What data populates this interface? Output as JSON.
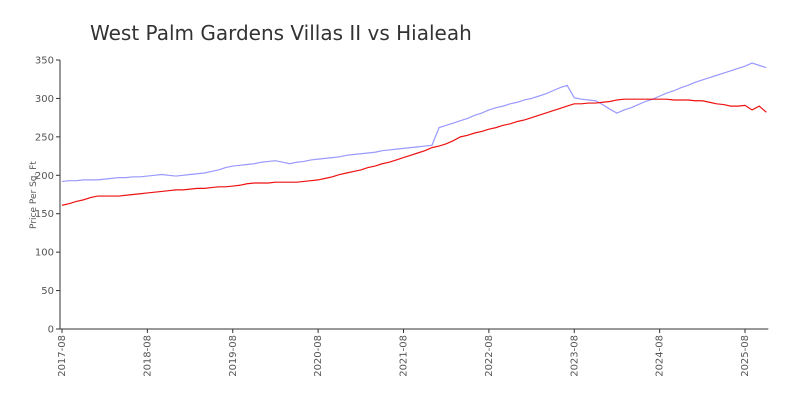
{
  "chart_data": {
    "type": "line",
    "title": "West Palm Gardens Villas II vs Hialeah",
    "ylabel": "Price Per Sq. Ft",
    "x": [
      "2017-08",
      "2017-09",
      "2017-10",
      "2017-11",
      "2017-12",
      "2018-01",
      "2018-02",
      "2018-03",
      "2018-04",
      "2018-05",
      "2018-06",
      "2018-07",
      "2018-08",
      "2018-09",
      "2018-10",
      "2018-11",
      "2018-12",
      "2019-01",
      "2019-02",
      "2019-03",
      "2019-04",
      "2019-05",
      "2019-06",
      "2019-07",
      "2019-08",
      "2019-09",
      "2019-10",
      "2019-11",
      "2019-12",
      "2020-01",
      "2020-02",
      "2020-03",
      "2020-04",
      "2020-05",
      "2020-06",
      "2020-07",
      "2020-08",
      "2020-09",
      "2020-10",
      "2020-11",
      "2020-12",
      "2021-01",
      "2021-02",
      "2021-03",
      "2021-04",
      "2021-05",
      "2021-06",
      "2021-07",
      "2021-08",
      "2021-09",
      "2021-10",
      "2021-11",
      "2021-12",
      "2022-01",
      "2022-02",
      "2022-03",
      "2022-04",
      "2022-05",
      "2022-06",
      "2022-07",
      "2022-08",
      "2022-09",
      "2022-10",
      "2022-11",
      "2022-12",
      "2023-01",
      "2023-02",
      "2023-03",
      "2023-04",
      "2023-05",
      "2023-06",
      "2023-07",
      "2023-08",
      "2023-09",
      "2023-10",
      "2023-11",
      "2023-12",
      "2024-01",
      "2024-02",
      "2024-03",
      "2024-04",
      "2024-05",
      "2024-06",
      "2024-07",
      "2024-08",
      "2024-09",
      "2024-10",
      "2024-11",
      "2024-12",
      "2025-01",
      "2025-02",
      "2025-03",
      "2025-04",
      "2025-05",
      "2025-06",
      "2025-07",
      "2025-08",
      "2025-09",
      "2025-10",
      "2025-11"
    ],
    "series": [
      {
        "color": "#9999ff",
        "values": [
          192,
          193,
          193,
          194,
          194,
          194,
          195,
          196,
          197,
          197,
          198,
          198,
          199,
          200,
          201,
          200,
          199,
          200,
          201,
          202,
          203,
          205,
          207,
          210,
          212,
          213,
          214,
          215,
          217,
          218,
          219,
          217,
          215,
          217,
          218,
          220,
          221,
          222,
          223,
          224,
          226,
          227,
          228,
          229,
          230,
          232,
          233,
          234,
          235,
          236,
          237,
          238,
          239,
          262,
          265,
          268,
          271,
          274,
          278,
          281,
          285,
          288,
          290,
          293,
          295,
          298,
          300,
          303,
          306,
          310,
          314,
          317,
          301,
          299,
          298,
          297,
          292,
          286,
          281,
          285,
          288,
          292,
          296,
          299,
          303,
          307,
          310,
          314,
          317,
          321,
          324,
          327,
          330,
          333,
          336,
          339,
          342,
          346,
          343,
          340
        ]
      },
      {
        "color": "#ee1111",
        "values": [
          161,
          163,
          166,
          168,
          171,
          173,
          173,
          173,
          173,
          174,
          175,
          176,
          177,
          178,
          179,
          180,
          181,
          181,
          182,
          183,
          183,
          184,
          185,
          185,
          186,
          187,
          189,
          190,
          190,
          190,
          191,
          191,
          191,
          191,
          192,
          193,
          194,
          196,
          198,
          201,
          203,
          205,
          207,
          210,
          212,
          215,
          217,
          220,
          223,
          226,
          229,
          232,
          236,
          238,
          241,
          245,
          250,
          252,
          255,
          257,
          260,
          262,
          265,
          267,
          270,
          272,
          275,
          278,
          281,
          284,
          287,
          290,
          293,
          293,
          294,
          294,
          295,
          296,
          298,
          299,
          299,
          299,
          299,
          299,
          299,
          299,
          298,
          298,
          298,
          297,
          297,
          295,
          293,
          292,
          290,
          290,
          291,
          285,
          290,
          282
        ]
      }
    ],
    "ylim": [
      0,
      350
    ],
    "yticks": [
      0,
      50,
      100,
      150,
      200,
      250,
      300,
      350
    ]
  }
}
